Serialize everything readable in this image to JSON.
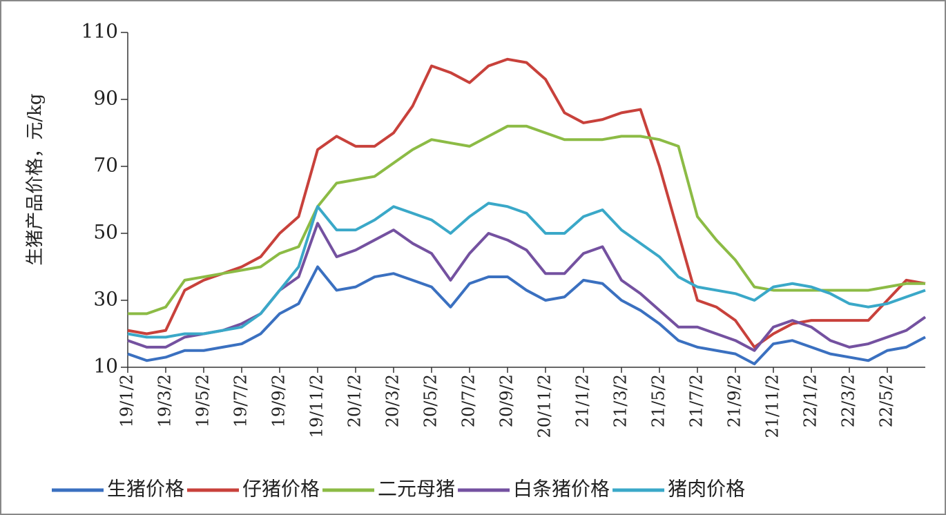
{
  "chart_data": {
    "type": "line",
    "y_label": "生猪产品价格，元/kg",
    "categories": [
      "19/1/2",
      null,
      "19/3/2",
      null,
      "19/5/2",
      null,
      "19/7/2",
      null,
      "19/9/2",
      null,
      "19/11/2",
      null,
      "20/1/2",
      null,
      "20/3/2",
      null,
      "20/5/2",
      null,
      "20/7/2",
      null,
      "20/9/2",
      null,
      "20/11/2",
      null,
      "21/1/2",
      null,
      "21/3/2",
      null,
      "21/5/2",
      null,
      "21/7/2",
      null,
      "21/9/2",
      null,
      "21/11/2",
      null,
      "22/1/2",
      null,
      "22/3/2",
      null,
      "22/5/2",
      null,
      null
    ],
    "series": [
      {
        "name": "生猪价格",
        "color": "#3a70c0",
        "values": [
          14,
          12,
          13,
          15,
          15,
          16,
          17,
          20,
          26,
          29,
          40,
          33,
          34,
          37,
          38,
          36,
          34,
          28,
          35,
          37,
          37,
          33,
          30,
          31,
          36,
          35,
          30,
          27,
          23,
          18,
          16,
          15,
          14,
          11,
          17,
          18,
          16,
          14,
          13,
          12,
          15,
          16,
          19
        ]
      },
      {
        "name": "仔猪价格",
        "color": "#c8413b",
        "values": [
          21,
          20,
          21,
          33,
          36,
          38,
          40,
          43,
          50,
          55,
          75,
          79,
          76,
          76,
          80,
          88,
          100,
          98,
          95,
          100,
          102,
          101,
          96,
          86,
          83,
          84,
          86,
          87,
          70,
          50,
          30,
          28,
          24,
          16,
          20,
          23,
          24,
          24,
          24,
          24,
          30,
          36,
          35
        ]
      },
      {
        "name": "二元母猪",
        "color": "#8cbb45",
        "values": [
          26,
          26,
          28,
          36,
          37,
          38,
          39,
          40,
          44,
          46,
          58,
          65,
          66,
          67,
          71,
          75,
          78,
          77,
          76,
          79,
          82,
          82,
          80,
          78,
          78,
          78,
          79,
          79,
          78,
          76,
          55,
          48,
          42,
          34,
          33,
          33,
          33,
          33,
          33,
          33,
          34,
          35,
          35
        ]
      },
      {
        "name": "白条猪价格",
        "color": "#7451a0",
        "values": [
          18,
          16,
          16,
          19,
          20,
          21,
          23,
          26,
          33,
          37,
          53,
          43,
          45,
          48,
          51,
          47,
          44,
          36,
          44,
          50,
          48,
          45,
          38,
          38,
          44,
          46,
          36,
          32,
          27,
          22,
          22,
          20,
          18,
          15,
          22,
          24,
          22,
          18,
          16,
          17,
          19,
          21,
          25
        ]
      },
      {
        "name": "猪肉价格",
        "color": "#3aa8c8",
        "values": [
          20,
          19,
          19,
          20,
          20,
          21,
          22,
          26,
          33,
          40,
          58,
          51,
          51,
          54,
          58,
          56,
          54,
          50,
          55,
          59,
          58,
          56,
          50,
          50,
          55,
          57,
          51,
          47,
          43,
          37,
          34,
          33,
          32,
          30,
          34,
          35,
          34,
          32,
          29,
          28,
          29,
          31,
          33
        ]
      }
    ],
    "ylim": [
      10,
      110
    ],
    "yticks": [
      10,
      30,
      50,
      70,
      90,
      110
    ]
  }
}
